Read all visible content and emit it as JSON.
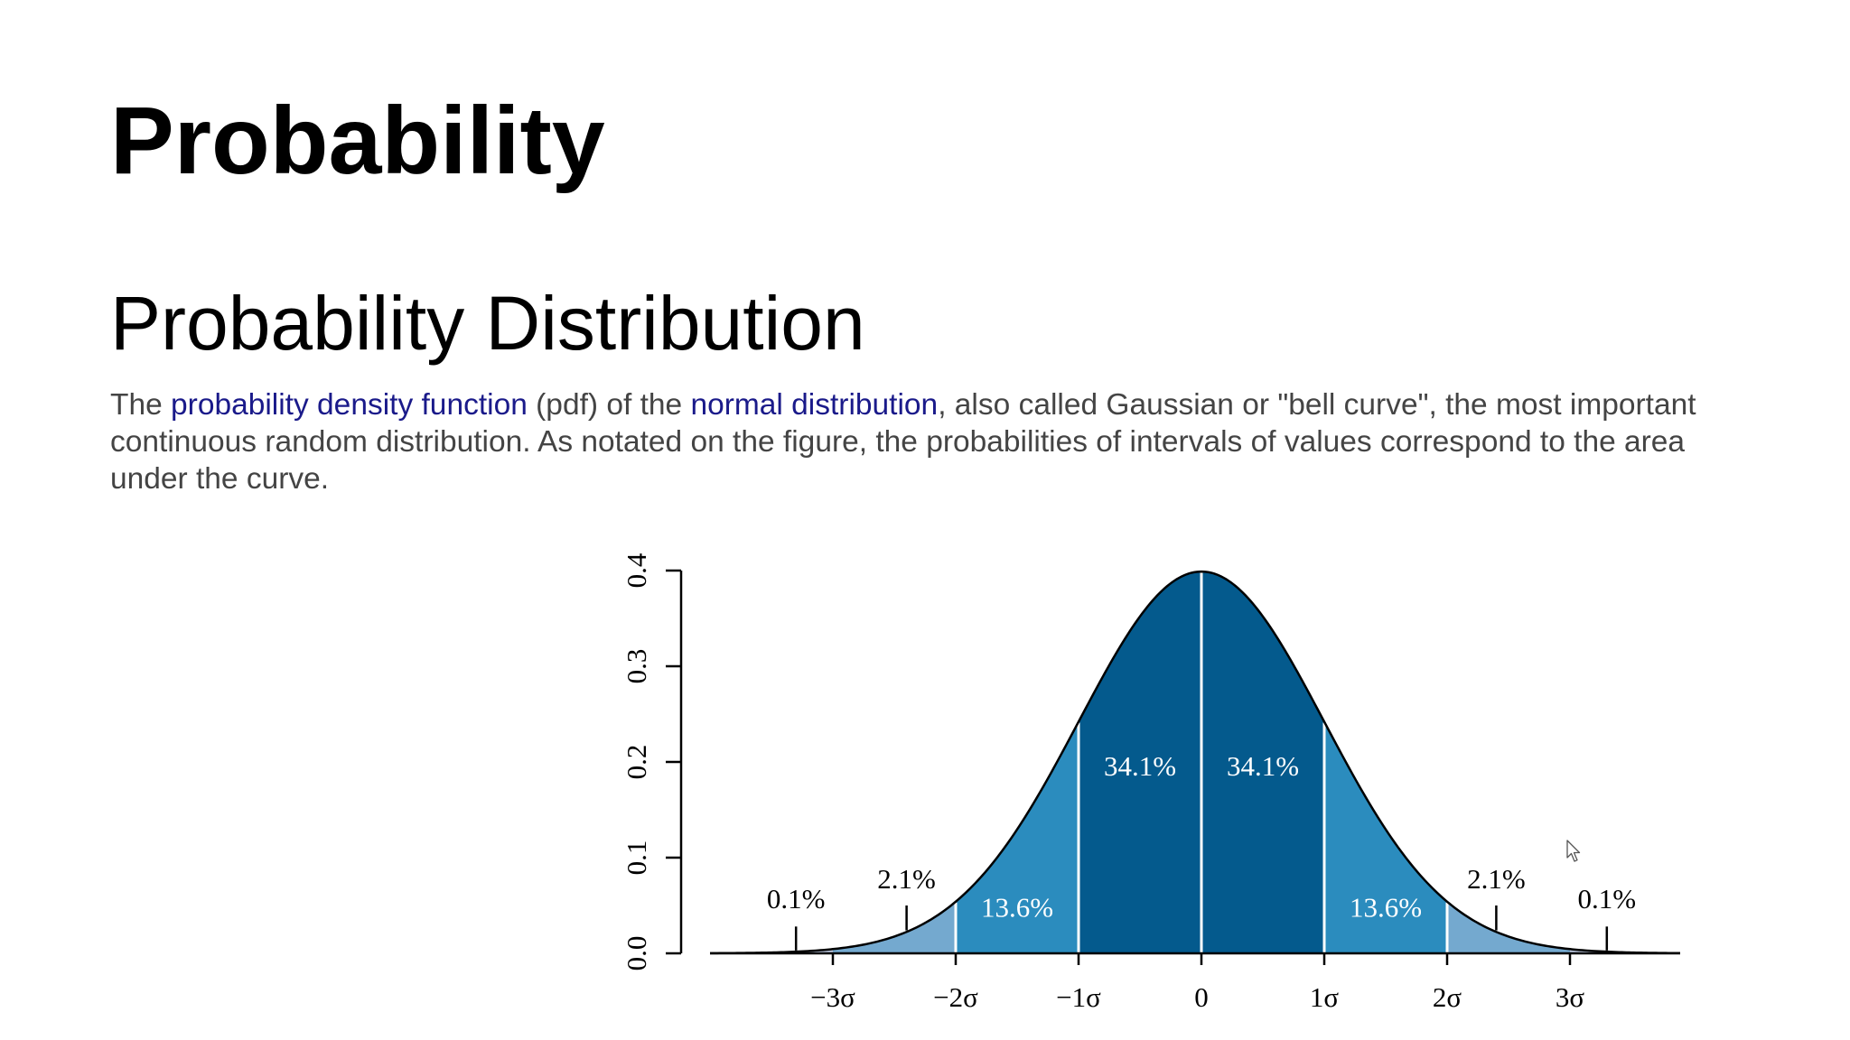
{
  "slide": {
    "title": "Probability",
    "section_title": "Probability Distribution",
    "description": {
      "part1": "The ",
      "link1": "probability density function",
      "part2": " (pdf) of the ",
      "link2": "normal distribution",
      "part3": ", also called Gaussian or \"bell curve\", the most important continuous random distribution. As notated on the figure, the probabilities of intervals of values correspond to the area under the curve."
    }
  },
  "colors": {
    "band_1sigma": "#045a8d",
    "band_2sigma": "#2b8cbe",
    "band_3sigma": "#74a9cf",
    "band_tail": "#bdc9e1",
    "divider": "#ffffff",
    "curve": "#000000"
  },
  "chart_data": {
    "type": "area",
    "distribution": "normal",
    "mean": 0,
    "sd": 1,
    "x_ticks": [
      -3,
      -2,
      -1,
      0,
      1,
      2,
      3
    ],
    "x_tick_labels": [
      "−3σ",
      "−2σ",
      "−1σ",
      "0",
      "1σ",
      "2σ",
      "3σ"
    ],
    "y_ticks": [
      0.0,
      0.1,
      0.2,
      0.3,
      0.4
    ],
    "y_tick_labels": [
      "0.0",
      "0.1",
      "0.2",
      "0.3",
      "0.4"
    ],
    "xlim": [
      -4,
      4
    ],
    "ylim": [
      0,
      0.4
    ],
    "grid": false,
    "regions": [
      {
        "from": -4,
        "to": -3,
        "percent": "0.1%",
        "label_x": -3.3,
        "label_y": 0.047
      },
      {
        "from": -3,
        "to": -2,
        "percent": "2.1%",
        "label_x": -2.4,
        "label_y": 0.068
      },
      {
        "from": -2,
        "to": -1,
        "percent": "13.6%",
        "label_x": -1.5,
        "label_y": 0.038
      },
      {
        "from": -1,
        "to": 0,
        "percent": "34.1%",
        "label_x": -0.5,
        "label_y": 0.186
      },
      {
        "from": 0,
        "to": 1,
        "percent": "34.1%",
        "label_x": 0.5,
        "label_y": 0.186
      },
      {
        "from": 1,
        "to": 2,
        "percent": "13.6%",
        "label_x": 1.5,
        "label_y": 0.038
      },
      {
        "from": 2,
        "to": 3,
        "percent": "2.1%",
        "label_x": 2.4,
        "label_y": 0.068
      },
      {
        "from": 3,
        "to": 4,
        "percent": "0.1%",
        "label_x": 3.3,
        "label_y": 0.047
      }
    ],
    "annotation_pointers": [
      {
        "x": -3.3,
        "from_y": 0.003,
        "to_y": 0.028
      },
      {
        "x": -2.4,
        "from_y": 0.024,
        "to_y": 0.05
      },
      {
        "x": 2.4,
        "from_y": 0.024,
        "to_y": 0.05
      },
      {
        "x": 3.3,
        "from_y": 0.003,
        "to_y": 0.028
      }
    ]
  }
}
